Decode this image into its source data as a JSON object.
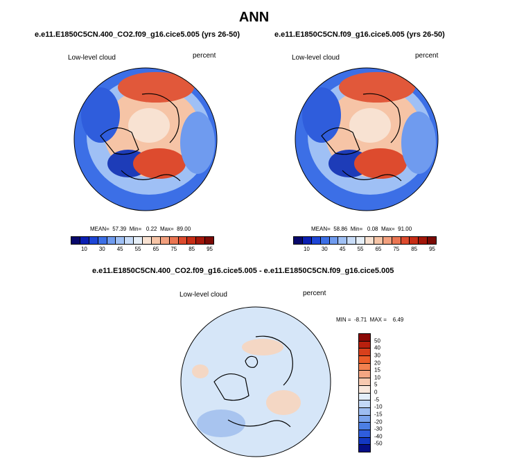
{
  "title": "ANN",
  "panels": [
    {
      "case": "e.e11.E1850C5CN.400_CO2.f09_g16.cice5.005 (yrs 26-50)",
      "variable": "Low-level cloud",
      "units": "percent",
      "stats": "MEAN=  57.39  Min=   0.22  Max=  89.00"
    },
    {
      "case": "e.e11.E1850C5CN.f09_g16.cice5.005 (yrs 26-50)",
      "variable": "Low-level cloud",
      "units": "percent",
      "stats": "MEAN=  58.86  Min=   0.08  Max=  91.00"
    }
  ],
  "diff": {
    "title": "e.e11.E1850C5CN.400_CO2.f09_g16.cice5.005 - e.e11.E1850C5CN.f09_g16.cice5.005",
    "variable": "Low-level cloud",
    "units": "percent",
    "stats": "MIN =  -8.71  MAX =    6.49"
  },
  "colorbar_abs": {
    "labels": [
      "10",
      "30",
      "45",
      "55",
      "65",
      "75",
      "85",
      "95"
    ],
    "colors": [
      "#08086b",
      "#0b1fb2",
      "#1e46d6",
      "#3c6fe6",
      "#6f9bef",
      "#9fc0f5",
      "#c8dcf8",
      "#e6eff8",
      "#f8e2d2",
      "#f6c4a6",
      "#f2a07e",
      "#ea7552",
      "#dd4b2e",
      "#c72d16",
      "#a3170a",
      "#7a0a04"
    ]
  },
  "colorbar_diff": {
    "labels": [
      "50",
      "40",
      "30",
      "20",
      "15",
      "10",
      "5",
      "0",
      "-5",
      "-10",
      "-15",
      "-20",
      "-30",
      "-40",
      "-50"
    ],
    "colors": [
      "#8b0a06",
      "#b8200e",
      "#d8401c",
      "#ec5d2a",
      "#f28150",
      "#f5a683",
      "#f7c9b0",
      "#f8e7dc",
      "#e3eefa",
      "#c3d8f6",
      "#9dbdf1",
      "#7aa3ec",
      "#4c7fe4",
      "#2f5ddc",
      "#1338c2",
      "#050f86"
    ]
  },
  "map_colors": {
    "ocean": "#cfe0f7",
    "warm": "#f5c6a8",
    "hot": "#e1583a",
    "cool": "#4f7fe0",
    "deep": "#1d3cb8",
    "pale": "#f4e4da",
    "diff_base": "#d6e6f8",
    "diff_pos": "#f4d7c4",
    "diff_neg": "#a8c4ef"
  }
}
